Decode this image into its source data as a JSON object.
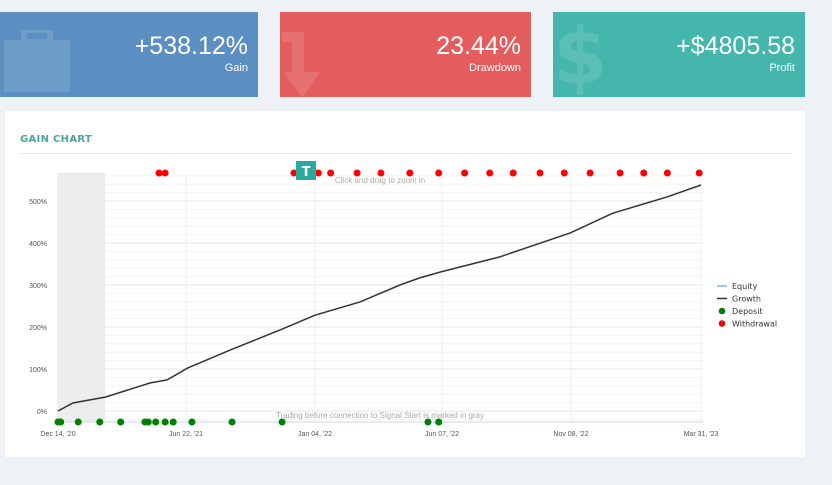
{
  "cards": [
    {
      "value": "+538.12%",
      "label": "Gain",
      "icon": "briefcase-icon",
      "color": "#5b8fc2"
    },
    {
      "value": "23.44%",
      "label": "Drawdown",
      "icon": "arrow-down-icon",
      "color": "#e35d5d"
    },
    {
      "value": "+$4805.58",
      "label": "Profit",
      "icon": "dollar-icon",
      "color": "#45b6ac"
    }
  ],
  "chart_title": "GAIN CHART",
  "badge": "T",
  "chart_data": {
    "type": "line",
    "zoom_hint": "Click and drag to zoom in",
    "gray_note": "Trading before connection to Signal Start is marked in gray",
    "gray_region": [
      "2020-12-14",
      "2021-02-22"
    ],
    "x_ticks": [
      {
        "date": "2020-12-14",
        "label": "Dec 14, '20"
      },
      {
        "date": "2021-06-22",
        "label": "Jun 22, '21"
      },
      {
        "date": "2022-01-04",
        "label": "Jan 04, '22"
      },
      {
        "date": "2022-06-07",
        "label": "Jun 07, '22"
      },
      {
        "date": "2022-11-08",
        "label": "Nov 08, '22"
      },
      {
        "date": "2023-03-31",
        "label": "Mar 31, '23"
      }
    ],
    "y_ticks": [
      {
        "value": 0,
        "label": "0%"
      },
      {
        "value": 100,
        "label": "100%"
      },
      {
        "value": 200,
        "label": "200%"
      },
      {
        "value": 300,
        "label": "300%"
      },
      {
        "value": 400,
        "label": "400%"
      },
      {
        "value": 500,
        "label": "500%"
      }
    ],
    "ylim": [
      -25,
      567
    ],
    "grid": true,
    "legend_position": "right",
    "legend": [
      {
        "name": "Equity",
        "kind": "line",
        "color": "#7cb5ec"
      },
      {
        "name": "Growth",
        "kind": "line",
        "color": "#333333"
      },
      {
        "name": "Deposit",
        "kind": "dot",
        "color": "#008000"
      },
      {
        "name": "Withdrawal",
        "kind": "dot",
        "color": "#ff0000"
      }
    ],
    "series": [
      {
        "name": "Growth",
        "color": "#333333",
        "points": [
          [
            "2020-12-14",
            0
          ],
          [
            "2021-01-05",
            19
          ],
          [
            "2021-02-22",
            33
          ],
          [
            "2021-04-30",
            67
          ],
          [
            "2021-05-25",
            74
          ],
          [
            "2021-06-24",
            102
          ],
          [
            "2021-08-28",
            145
          ],
          [
            "2021-11-12",
            193
          ],
          [
            "2022-01-04",
            228
          ],
          [
            "2022-02-28",
            260
          ],
          [
            "2022-04-17",
            300
          ],
          [
            "2022-05-11",
            317
          ],
          [
            "2022-06-05",
            331
          ],
          [
            "2022-08-15",
            367
          ],
          [
            "2022-11-07",
            424
          ],
          [
            "2022-12-24",
            471
          ],
          [
            "2023-02-22",
            510
          ],
          [
            "2023-03-31",
            538.12
          ]
        ]
      },
      {
        "name": "Withdrawal",
        "color": "#ff0000",
        "dates": [
          "2021-05-13",
          "2021-05-22",
          "2021-12-03",
          "2022-01-08",
          "2022-01-23",
          "2022-02-24",
          "2022-03-25",
          "2022-04-29",
          "2022-06-03",
          "2022-07-04",
          "2022-08-03",
          "2022-08-31",
          "2022-10-02",
          "2022-10-31",
          "2022-11-29",
          "2023-01-01",
          "2023-01-27",
          "2023-02-22",
          "2023-03-29"
        ]
      },
      {
        "name": "Deposit",
        "color": "#008000",
        "dates": [
          "2020-12-14",
          "2020-12-18",
          "2021-01-13",
          "2021-02-14",
          "2021-03-17",
          "2021-04-22",
          "2021-04-27",
          "2021-05-08",
          "2021-05-22",
          "2021-06-03",
          "2021-07-01",
          "2021-08-31",
          "2021-11-15",
          "2022-05-21",
          "2022-06-03"
        ]
      }
    ]
  }
}
